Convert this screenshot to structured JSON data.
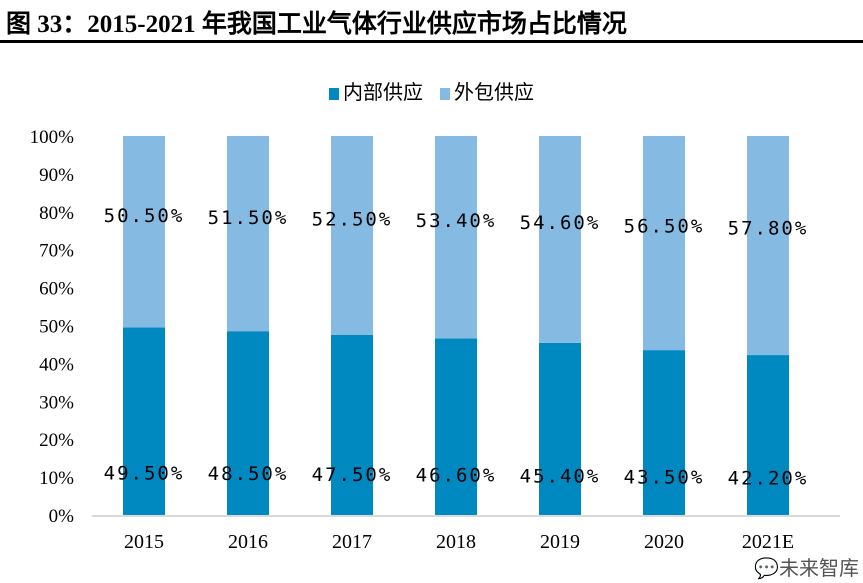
{
  "title": "图 33：2015-2021 年我国工业气体行业供应市场占比情况",
  "watermark": "未来智库",
  "chart_data": {
    "type": "bar",
    "stacked": true,
    "categories": [
      "2015",
      "2016",
      "2017",
      "2018",
      "2019",
      "2020",
      "2021E"
    ],
    "series": [
      {
        "name": "内部供应",
        "values": [
          49.5,
          48.5,
          47.5,
          46.6,
          45.4,
          43.5,
          42.2
        ],
        "labels": [
          "49.50%",
          "48.50%",
          "47.50%",
          "46.60%",
          "45.40%",
          "43.50%",
          "42.20%"
        ],
        "color": "#0088c0"
      },
      {
        "name": "外包供应",
        "values": [
          50.5,
          51.5,
          52.5,
          53.4,
          54.6,
          56.5,
          57.8
        ],
        "labels": [
          "50.50%",
          "51.50%",
          "52.50%",
          "53.40%",
          "54.60%",
          "56.50%",
          "57.80%"
        ],
        "color": "#85bbe2"
      }
    ],
    "yticks": [
      "0%",
      "10%",
      "20%",
      "30%",
      "40%",
      "50%",
      "60%",
      "70%",
      "80%",
      "90%",
      "100%"
    ],
    "ylim": [
      0,
      100
    ],
    "grid": false,
    "legend": "top-center"
  }
}
